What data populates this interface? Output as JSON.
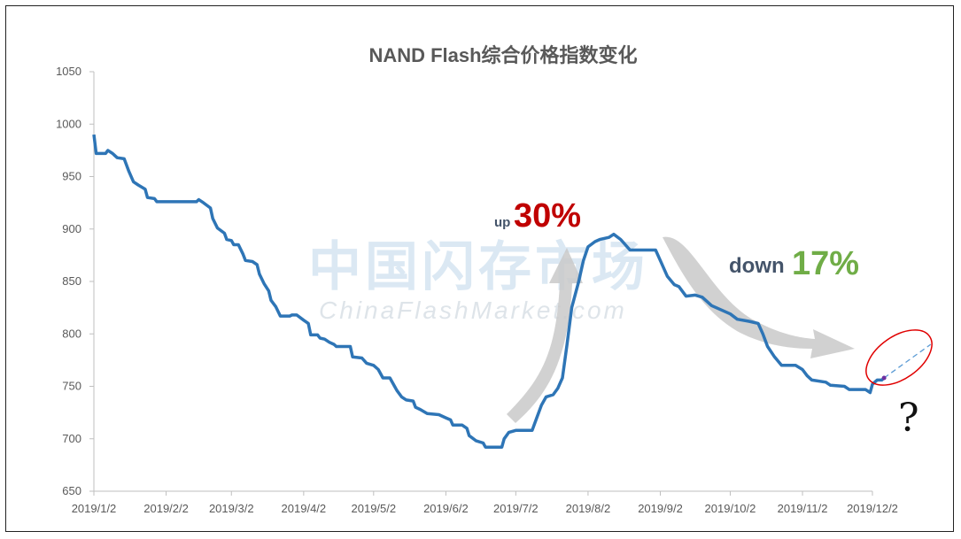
{
  "chart_data": {
    "type": "line",
    "title": "NAND Flash综合价格指数变化",
    "ylim": [
      650,
      1050
    ],
    "yticks": [
      650,
      700,
      750,
      800,
      850,
      900,
      950,
      1000,
      1050
    ],
    "xticks": [
      "2019/1/2",
      "2019/2/2",
      "2019/3/2",
      "2019/4/2",
      "2019/5/2",
      "2019/6/2",
      "2019/7/2",
      "2019/8/2",
      "2019/9/2",
      "2019/10/2",
      "2019/11/2",
      "2019/12/2"
    ],
    "line_color": "#2E75B6",
    "series": [
      {
        "points": [
          [
            "2019-01-02",
            990
          ],
          [
            "2019-01-03",
            972
          ],
          [
            "2019-01-07",
            972
          ],
          [
            "2019-01-08",
            975
          ],
          [
            "2019-01-10",
            972
          ],
          [
            "2019-01-12",
            968
          ],
          [
            "2019-01-15",
            967
          ],
          [
            "2019-01-17",
            955
          ],
          [
            "2019-01-19",
            945
          ],
          [
            "2019-01-21",
            942
          ],
          [
            "2019-01-24",
            938
          ],
          [
            "2019-01-25",
            930
          ],
          [
            "2019-01-28",
            929
          ],
          [
            "2019-01-29",
            926
          ],
          [
            "2019-02-15",
            926
          ],
          [
            "2019-02-16",
            928
          ],
          [
            "2019-02-18",
            925
          ],
          [
            "2019-02-21",
            920
          ],
          [
            "2019-02-22",
            910
          ],
          [
            "2019-02-24",
            901
          ],
          [
            "2019-02-27",
            896
          ],
          [
            "2019-02-28",
            890
          ],
          [
            "2019-03-02",
            889
          ],
          [
            "2019-03-03",
            885
          ],
          [
            "2019-03-05",
            885
          ],
          [
            "2019-03-07",
            876
          ],
          [
            "2019-03-08",
            870
          ],
          [
            "2019-03-11",
            869
          ],
          [
            "2019-03-13",
            866
          ],
          [
            "2019-03-14",
            857
          ],
          [
            "2019-03-16",
            848
          ],
          [
            "2019-03-18",
            841
          ],
          [
            "2019-03-19",
            832
          ],
          [
            "2019-03-21",
            826
          ],
          [
            "2019-03-23",
            817
          ],
          [
            "2019-03-27",
            817
          ],
          [
            "2019-03-28",
            818
          ],
          [
            "2019-03-30",
            818
          ],
          [
            "2019-04-02",
            813
          ],
          [
            "2019-04-04",
            810
          ],
          [
            "2019-04-05",
            799
          ],
          [
            "2019-04-08",
            799
          ],
          [
            "2019-04-09",
            796
          ],
          [
            "2019-04-11",
            795
          ],
          [
            "2019-04-13",
            792
          ],
          [
            "2019-04-15",
            790
          ],
          [
            "2019-04-16",
            788
          ],
          [
            "2019-04-22",
            788
          ],
          [
            "2019-04-23",
            778
          ],
          [
            "2019-04-27",
            777
          ],
          [
            "2019-04-29",
            772
          ],
          [
            "2019-05-02",
            770
          ],
          [
            "2019-05-04",
            766
          ],
          [
            "2019-05-06",
            758
          ],
          [
            "2019-05-09",
            758
          ],
          [
            "2019-05-11",
            750
          ],
          [
            "2019-05-12",
            746
          ],
          [
            "2019-05-14",
            740
          ],
          [
            "2019-05-16",
            737
          ],
          [
            "2019-05-19",
            736
          ],
          [
            "2019-05-20",
            730
          ],
          [
            "2019-05-22",
            728
          ],
          [
            "2019-05-25",
            724
          ],
          [
            "2019-05-30",
            723
          ],
          [
            "2019-06-02",
            720
          ],
          [
            "2019-06-04",
            718
          ],
          [
            "2019-06-05",
            713
          ],
          [
            "2019-06-09",
            713
          ],
          [
            "2019-06-11",
            710
          ],
          [
            "2019-06-12",
            703
          ],
          [
            "2019-06-15",
            698
          ],
          [
            "2019-06-18",
            696
          ],
          [
            "2019-06-19",
            692
          ],
          [
            "2019-06-26",
            692
          ],
          [
            "2019-06-27",
            700
          ],
          [
            "2019-06-29",
            706
          ],
          [
            "2019-07-02",
            708
          ],
          [
            "2019-07-09",
            708
          ],
          [
            "2019-07-11",
            720
          ],
          [
            "2019-07-13",
            732
          ],
          [
            "2019-07-15",
            740
          ],
          [
            "2019-07-18",
            742
          ],
          [
            "2019-07-20",
            748
          ],
          [
            "2019-07-22",
            758
          ],
          [
            "2019-07-24",
            790
          ],
          [
            "2019-07-26",
            825
          ],
          [
            "2019-07-29",
            850
          ],
          [
            "2019-07-31",
            870
          ],
          [
            "2019-08-02",
            883
          ],
          [
            "2019-08-05",
            888
          ],
          [
            "2019-08-07",
            890
          ],
          [
            "2019-08-11",
            892
          ],
          [
            "2019-08-13",
            895
          ],
          [
            "2019-08-16",
            890
          ],
          [
            "2019-08-20",
            880
          ],
          [
            "2019-08-22",
            880
          ],
          [
            "2019-08-31",
            880
          ],
          [
            "2019-09-02",
            870
          ],
          [
            "2019-09-05",
            855
          ],
          [
            "2019-09-08",
            847
          ],
          [
            "2019-09-10",
            845
          ],
          [
            "2019-09-13",
            836
          ],
          [
            "2019-09-17",
            837
          ],
          [
            "2019-09-20",
            835
          ],
          [
            "2019-09-24",
            827
          ],
          [
            "2019-09-27",
            824
          ],
          [
            "2019-10-02",
            819
          ],
          [
            "2019-10-05",
            814
          ],
          [
            "2019-10-10",
            812
          ],
          [
            "2019-10-14",
            810
          ],
          [
            "2019-10-16",
            800
          ],
          [
            "2019-10-18",
            788
          ],
          [
            "2019-10-21",
            778
          ],
          [
            "2019-10-24",
            770
          ],
          [
            "2019-10-30",
            770
          ],
          [
            "2019-11-02",
            766
          ],
          [
            "2019-11-04",
            760
          ],
          [
            "2019-11-06",
            756
          ],
          [
            "2019-11-12",
            754
          ],
          [
            "2019-11-14",
            751
          ],
          [
            "2019-11-20",
            750
          ],
          [
            "2019-11-22",
            747
          ],
          [
            "2019-11-29",
            747
          ],
          [
            "2019-12-01",
            744
          ],
          [
            "2019-12-02",
            752
          ],
          [
            "2019-12-04",
            756
          ],
          [
            "2019-12-06",
            756
          ],
          [
            "2019-12-07",
            758
          ]
        ]
      }
    ],
    "projection": [
      [
        "2019-12-07",
        758
      ],
      [
        "2019-12-27",
        790
      ]
    ]
  },
  "annotations": {
    "up_small": "up",
    "up_big": "30%",
    "up_color": "#C00000",
    "down_small": "down",
    "down_big": "17%",
    "down_color": "#70AD47",
    "question": "?",
    "ellipse_color": "#E00000"
  },
  "watermark": {
    "cn": "中国闪存市场",
    "en": "ChinaFlashMarket.com"
  }
}
